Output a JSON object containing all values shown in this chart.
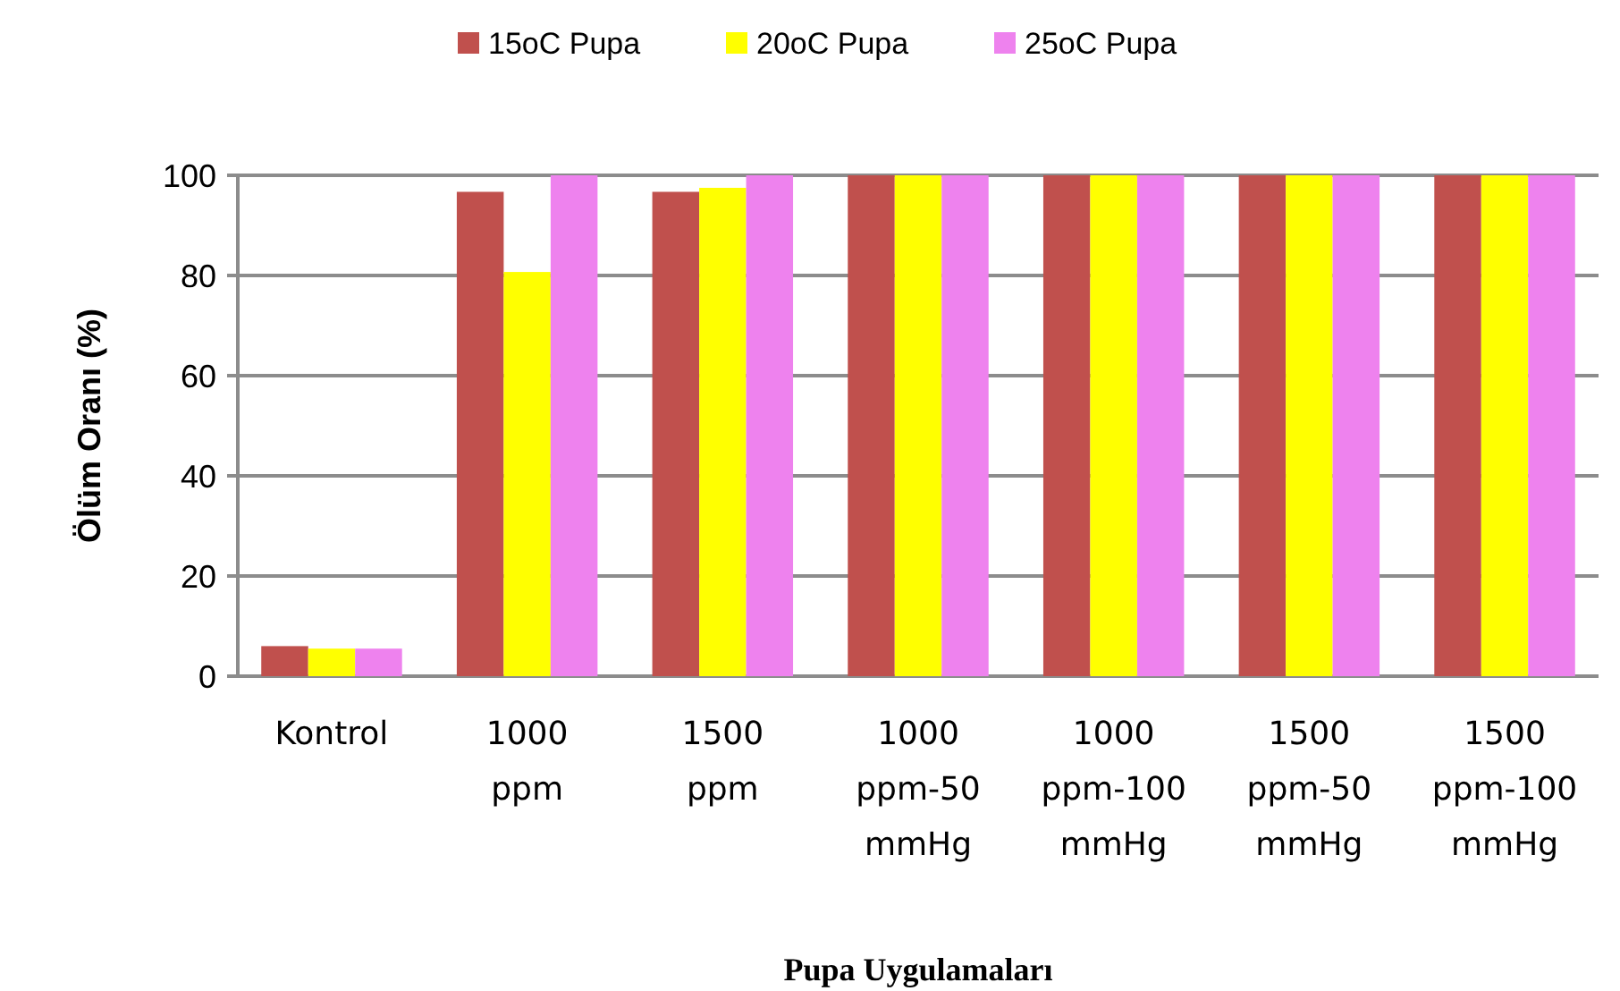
{
  "chart_data": {
    "type": "bar",
    "xlabel": "Pupa Uygulamaları",
    "ylabel": "Ölüm Oranı (%)",
    "categories": [
      "Kontrol",
      "1000 ppm",
      "1500 ppm",
      "1000 ppm-50 mmHg",
      "1000 ppm-100 mmHg",
      "1500 ppm-50 mmHg",
      "1500 ppm-100 mmHg"
    ],
    "series": [
      {
        "name": "15oC Pupa",
        "color": "#c0504d",
        "values": [
          6,
          96.7,
          96.7,
          100,
          100,
          100,
          100
        ]
      },
      {
        "name": "20oC Pupa",
        "color": "#ffff00",
        "values": [
          5.5,
          80.7,
          97.5,
          100,
          100,
          100,
          100
        ]
      },
      {
        "name": "25oC Pupa",
        "color": "#ee82ee",
        "values": [
          5.5,
          100,
          100,
          100,
          100,
          100,
          100
        ]
      }
    ],
    "ylim": [
      0,
      100
    ],
    "yticks": [
      0,
      20,
      40,
      60,
      80,
      100
    ],
    "grid": "y",
    "legend": "top"
  }
}
